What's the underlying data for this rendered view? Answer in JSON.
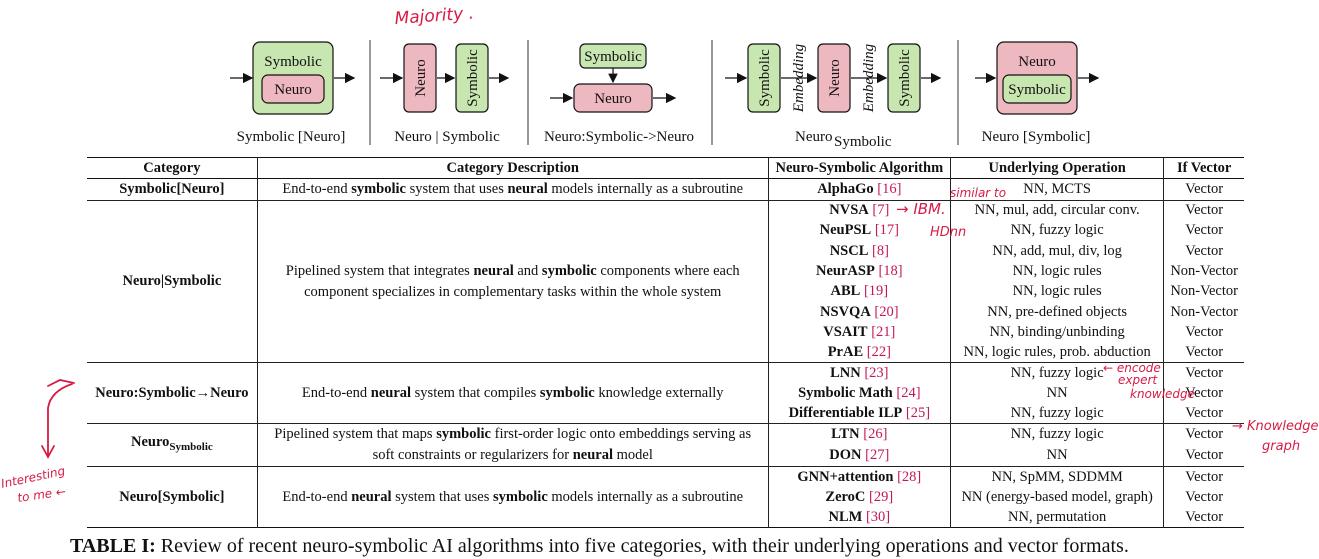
{
  "diagrams": [
    {
      "caption": "Symbolic [Neuro]",
      "outer": "Symbolic",
      "inner": "Neuro"
    },
    {
      "caption": "Neuro | Symbolic",
      "first": "Neuro",
      "second": "Symbolic"
    },
    {
      "caption": "Neuro:Symbolic->Neuro",
      "top": "Symbolic",
      "bottom": "Neuro"
    },
    {
      "caption_main": "Neuro",
      "caption_sub": "Symbolic",
      "b1": "Symbolic",
      "e1": "Embedding",
      "b2": "Neuro",
      "e2": "Embedding",
      "b3": "Symbolic"
    },
    {
      "caption": "Neuro [Symbolic]",
      "outer": "Neuro",
      "inner": "Symbolic"
    }
  ],
  "table": {
    "headers": [
      "Category",
      "Category Description",
      "Neuro-Symbolic Algorithm",
      "Underlying Operation",
      "If Vector"
    ],
    "groups": [
      {
        "category": "Symbolic[Neuro]",
        "desc": [
          "End-to-end ",
          "symbolic",
          " system that uses ",
          "neural",
          " models internally as a subroutine"
        ],
        "rows": [
          {
            "alg": "AlphaGo",
            "ref": "[16]",
            "op": "NN, MCTS",
            "vec": "Vector"
          }
        ]
      },
      {
        "category": "Neuro|Symbolic",
        "desc": [
          "Pipelined system that integrates ",
          "neural",
          " and ",
          "symbolic",
          " components where each component specializes in complementary tasks within the whole system"
        ],
        "rows": [
          {
            "alg": "NVSA",
            "ref": "[7]",
            "op": "NN, mul, add, circular conv.",
            "vec": "Vector"
          },
          {
            "alg": "NeuPSL",
            "ref": "[17]",
            "op": "NN, fuzzy logic",
            "vec": "Vector"
          },
          {
            "alg": "NSCL",
            "ref": "[8]",
            "op": "NN, add, mul, div, log",
            "vec": "Vector"
          },
          {
            "alg": "NeurASP",
            "ref": "[18]",
            "op": "NN, logic rules",
            "vec": "Non-Vector"
          },
          {
            "alg": "ABL",
            "ref": "[19]",
            "op": "NN, logic rules",
            "vec": "Non-Vector"
          },
          {
            "alg": "NSVQA",
            "ref": "[20]",
            "op": "NN, pre-defined objects",
            "vec": "Non-Vector"
          },
          {
            "alg": "VSAIT",
            "ref": "[21]",
            "op": "NN, binding/unbinding",
            "vec": "Vector"
          },
          {
            "alg": "PrAE",
            "ref": "[22]",
            "op": "NN, logic rules, prob. abduction",
            "vec": "Vector"
          }
        ]
      },
      {
        "category": "Neuro:Symbolic→Neuro",
        "desc": [
          "End-to-end ",
          "neural",
          " system that compiles ",
          "symbolic",
          " knowledge externally"
        ],
        "rows": [
          {
            "alg": "LNN",
            "ref": "[23]",
            "op": "NN, fuzzy logic",
            "vec": "Vector"
          },
          {
            "alg": "Symbolic Math",
            "ref": "[24]",
            "op": "NN",
            "vec": "Vector"
          },
          {
            "alg": "Differentiable ILP",
            "ref": "[25]",
            "op": "NN, fuzzy logic",
            "vec": "Vector"
          }
        ]
      },
      {
        "category_main": "Neuro",
        "category_sub": "Symbolic",
        "desc": [
          "Pipelined system that maps ",
          "symbolic",
          " first-order logic onto embeddings serving as soft constraints or regularizers for ",
          "neural",
          " model"
        ],
        "rows": [
          {
            "alg": "LTN",
            "ref": "[26]",
            "op": "NN, fuzzy logic",
            "vec": "Vector"
          },
          {
            "alg": "DON",
            "ref": "[27]",
            "op": "NN",
            "vec": "Vector"
          }
        ]
      },
      {
        "category": "Neuro[Symbolic]",
        "desc": [
          "End-to-end ",
          "neural",
          " system that uses ",
          "symbolic",
          " models internally as a subroutine"
        ],
        "rows": [
          {
            "alg": "GNN+attention",
            "ref": "[28]",
            "op": "NN, SpMM, SDDMM",
            "vec": "Vector"
          },
          {
            "alg": "ZeroC",
            "ref": "[29]",
            "op": "NN (energy-based model, graph)",
            "vec": "Vector"
          },
          {
            "alg": "NLM",
            "ref": "[30]",
            "op": "NN, permutation",
            "vec": "Vector"
          }
        ]
      }
    ]
  },
  "caption": {
    "label": "TABLE I:",
    "text": " Review of recent neuro-symbolic AI algorithms into five categories, with their underlying operations and vector formats."
  },
  "annotations": {
    "majority": "Majority .",
    "similar_to": "similar to",
    "ibm": "→ IBM.",
    "hdnn": "HDnn",
    "encode": "← encode",
    "expert": "expert",
    "knowledge": "knowledge",
    "knowledge_graph_1": "→ Knowledge",
    "knowledge_graph_2": "graph",
    "interesting_1": "Interesting",
    "interesting_2": "to me ←"
  },
  "colors": {
    "symbolic_fill": "#c8e6b0",
    "neuro_fill": "#eeb8c0",
    "ref_color": "#c2185b",
    "highlight": "#46aadc",
    "ink": "#d81b45"
  }
}
